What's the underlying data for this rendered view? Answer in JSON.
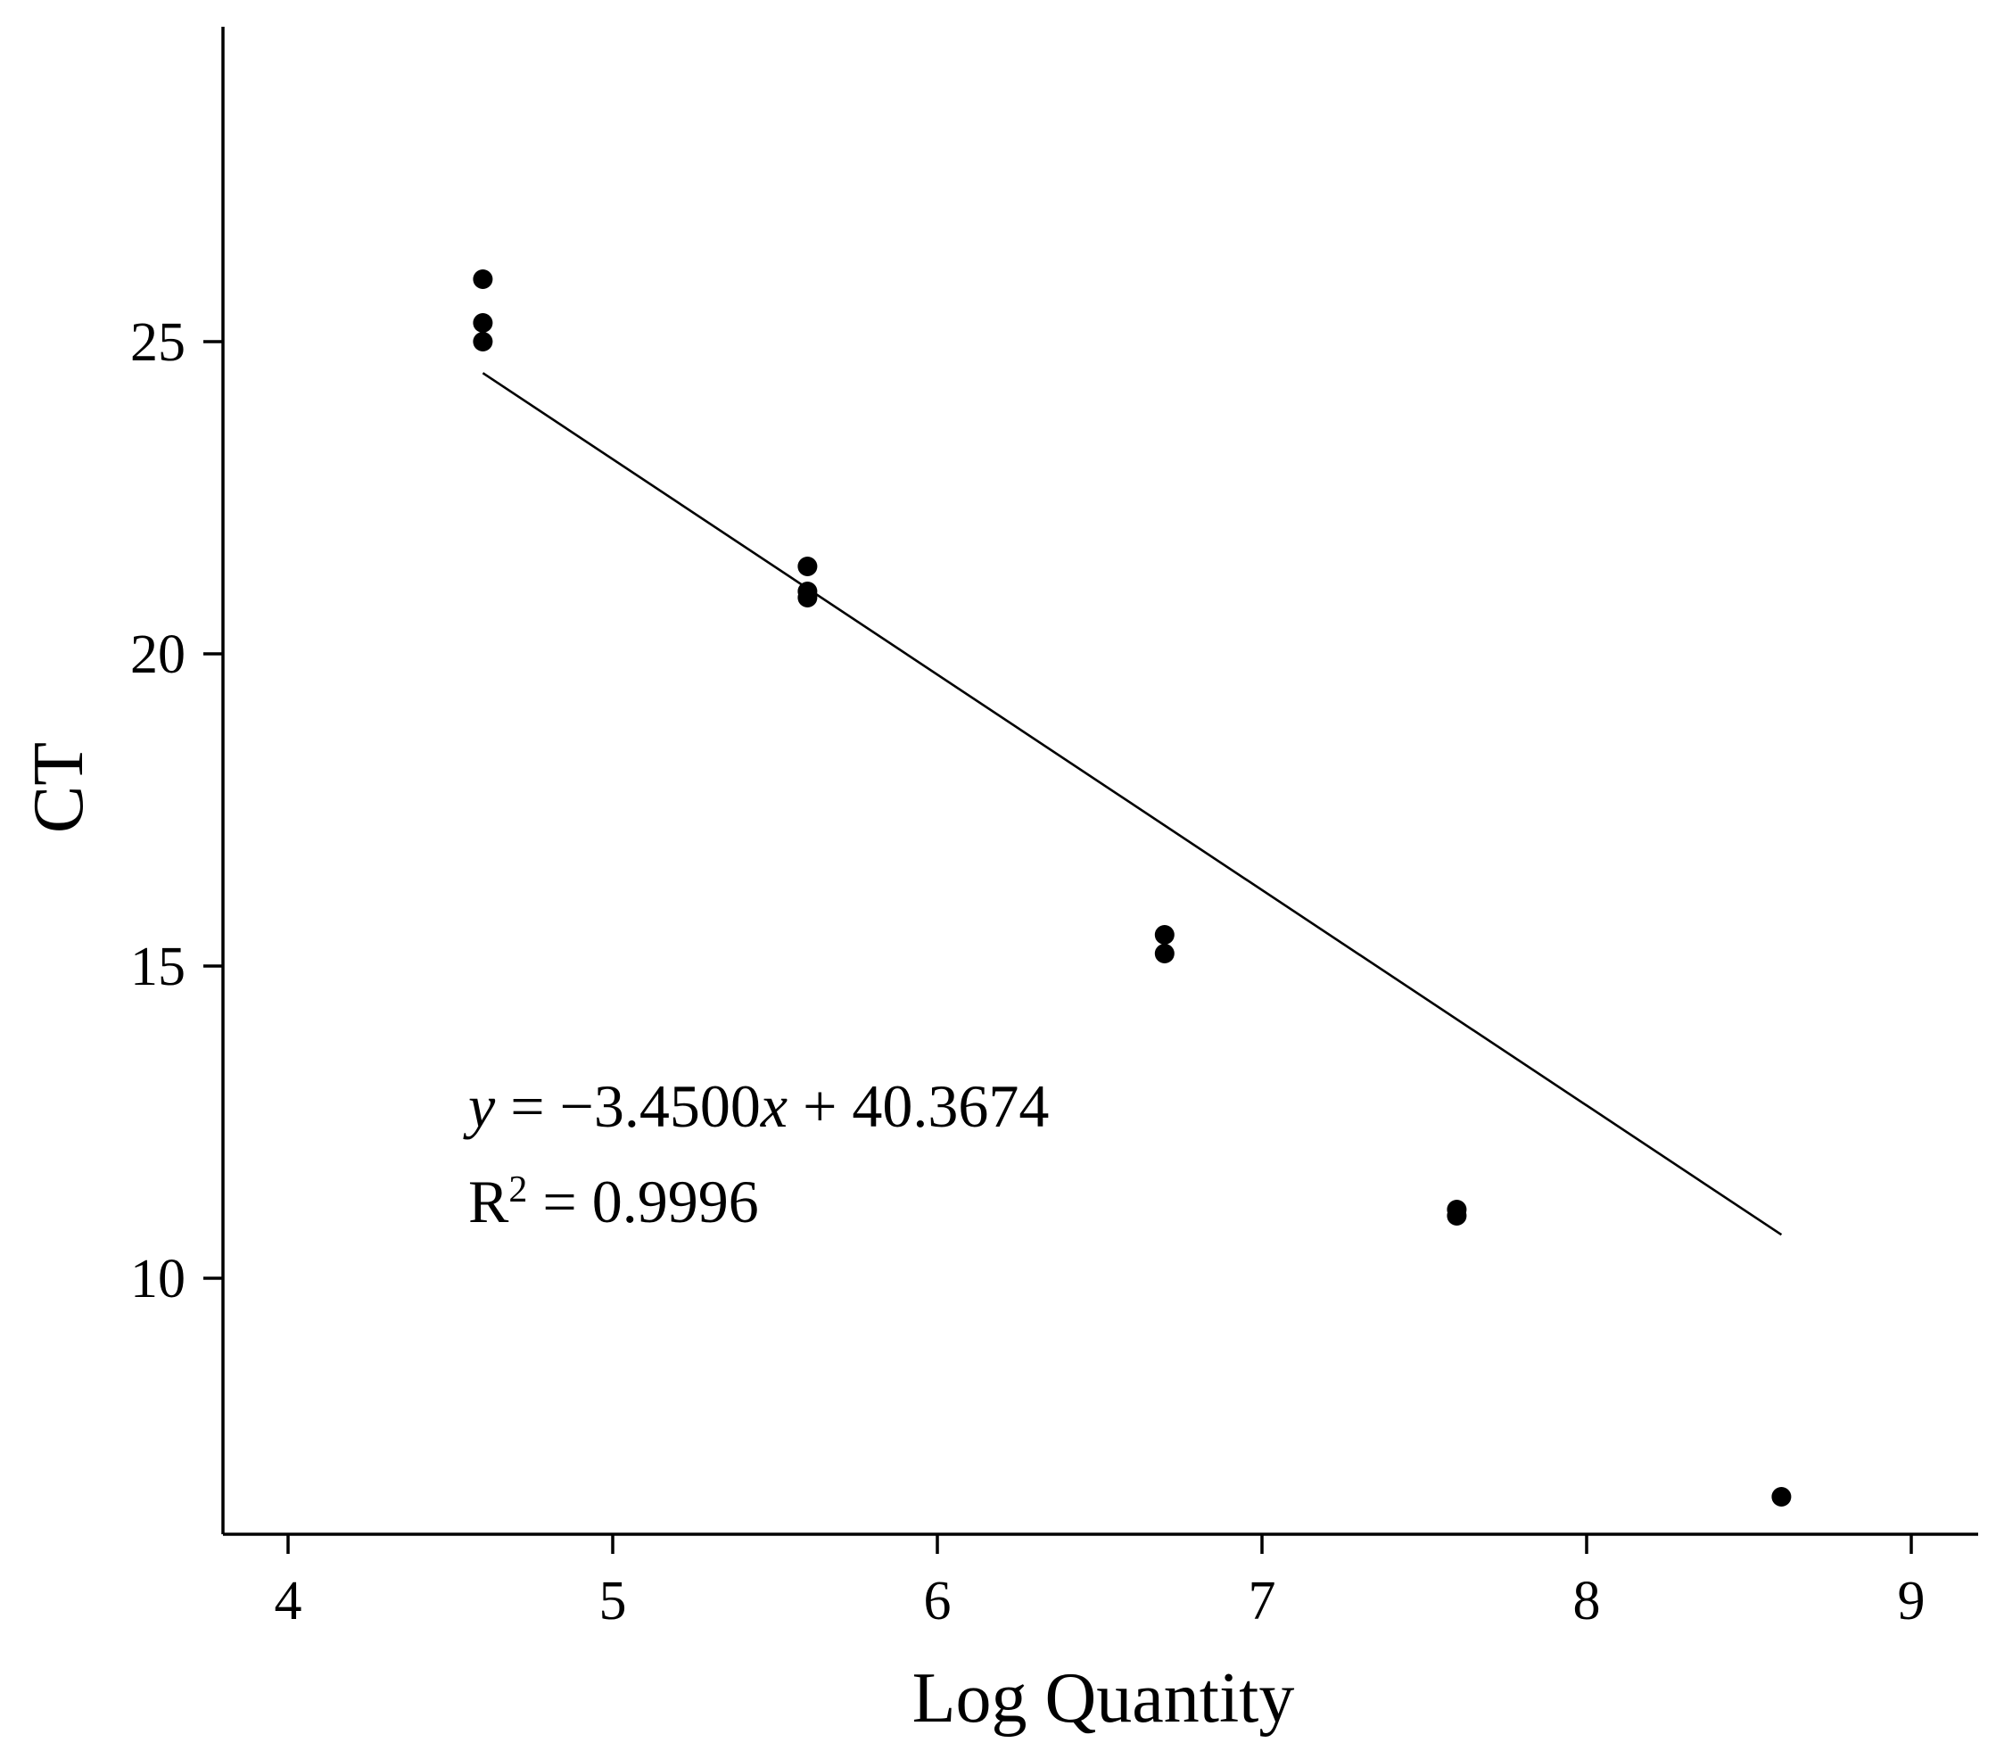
{
  "chart_data": {
    "type": "scatter",
    "title": "",
    "xlabel": "Log Quantity",
    "ylabel": "CT",
    "xlim": [
      3.8,
      9.2
    ],
    "ylim": [
      6.0,
      30.0
    ],
    "xticks": [
      4,
      5,
      6,
      7,
      8,
      9
    ],
    "yticks": [
      10,
      15,
      20,
      25
    ],
    "grid": false,
    "legend": "none",
    "series": [
      {
        "marker": "circle",
        "color": "#000000",
        "points": [
          {
            "x": 4.6,
            "y": 26.0
          },
          {
            "x": 4.6,
            "y": 25.3
          },
          {
            "x": 4.6,
            "y": 25.0
          },
          {
            "x": 5.6,
            "y": 21.4
          },
          {
            "x": 5.6,
            "y": 21.0
          },
          {
            "x": 5.6,
            "y": 20.9
          },
          {
            "x": 6.7,
            "y": 15.5
          },
          {
            "x": 6.7,
            "y": 15.2
          },
          {
            "x": 7.6,
            "y": 11.1
          },
          {
            "x": 7.6,
            "y": 11.0
          },
          {
            "x": 8.6,
            "y": 6.5
          }
        ]
      }
    ],
    "trendline": {
      "slope": -3.45,
      "intercept": 40.3674,
      "x_start": 4.6,
      "x_end": 8.6
    },
    "annotations": {
      "equation_y": "y",
      "equation_mid": " = −3.4500",
      "equation_x": "x",
      "equation_rest": " + 40.3674",
      "r_label": "R",
      "r_sup": "2",
      "r_value": " = 0.9996"
    }
  }
}
